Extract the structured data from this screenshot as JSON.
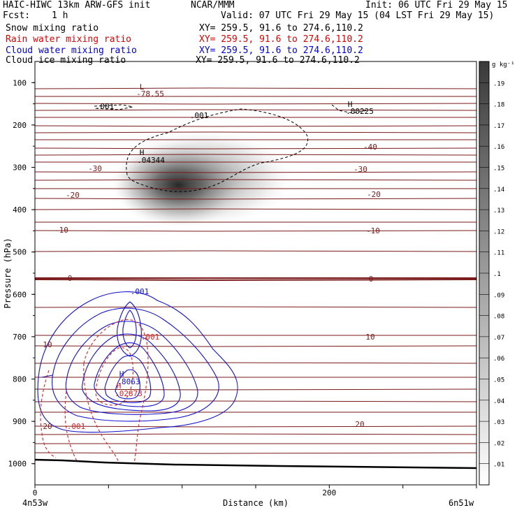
{
  "header": {
    "title": "HAIC-HIWC 13km ARW-GFS init",
    "org": "NCAR/MMM",
    "init": "Init: 06 UTC Fri 29 May 15",
    "fcst_label": "Fcst:",
    "fcst_value": "1 h",
    "valid": "Valid: 07 UTC Fri 29 May 15 (04 LST Fri 29 May 15)"
  },
  "fields": [
    {
      "name": "Snow mixing ratio",
      "xy": "XY= 259.5, 91.6 to 274.6,110.2",
      "color": "#000000"
    },
    {
      "name": "Rain water mixing ratio",
      "xy": "XY= 259.5, 91.6 to 274.6,110.2",
      "color": "#e00000"
    },
    {
      "name": "Cloud water mixing ratio",
      "xy": "XY= 259.5, 91.6 to 274.6,110.2",
      "color": "#0000dd"
    },
    {
      "name": "Cloud ice mixing ratio",
      "xy": "XY= 259.5, 91.6 to 274.6,110.2",
      "color": "#000000"
    }
  ],
  "chart_data": {
    "type": "heatmap",
    "xlabel": "Distance (km)",
    "ylabel": "Pressure (hPa)",
    "xlim": [
      0,
      300
    ],
    "ylim": [
      1050,
      50
    ],
    "x_ticks": [
      0,
      200
    ],
    "y_ticks": [
      100,
      200,
      300,
      400,
      500,
      600,
      700,
      800,
      900,
      1000
    ],
    "x_endpoint_labels": [
      "4n53w",
      "6n51w"
    ],
    "colorbar": {
      "unit": "g kg⁻¹",
      "ticks": [
        ".01",
        ".02",
        ".03",
        ".04",
        ".05",
        ".06",
        ".07",
        ".08",
        ".09",
        ".1",
        ".11",
        ".12",
        ".13",
        ".14",
        ".15",
        ".16",
        ".17",
        ".18",
        ".19"
      ]
    },
    "temperature_contours_labels": [
      "-78.55",
      "-40",
      "-30",
      "-30",
      "-20",
      "-20",
      "-10",
      "-10",
      "0",
      "0",
      "10",
      "10",
      "20",
      "20"
    ],
    "snow_max": {
      "symbol": "H",
      "value": ".04344",
      "x": 75,
      "p": 295
    },
    "ice_max": {
      "symbol": "H",
      "value": ".00225",
      "x": 225,
      "p": 165
    },
    "ice_min_label": {
      "symbol": "L",
      "value": "-78.55",
      "x": 75,
      "p": 135
    },
    "cloudwater_max": {
      "symbol": "H",
      "value": ".8063",
      "x": 62,
      "p": 790
    },
    "rain_max": {
      "symbol": "H",
      "value": ".02873",
      "x": 63,
      "p": 815
    },
    "contour_labels": [
      ".001",
      ".001",
      ".001",
      ".001",
      ".001"
    ],
    "colors": {
      "temperature": "#7a1a1a",
      "cloud_water": "#1010d0",
      "rain": "#e02020",
      "ground": "#000000"
    }
  }
}
